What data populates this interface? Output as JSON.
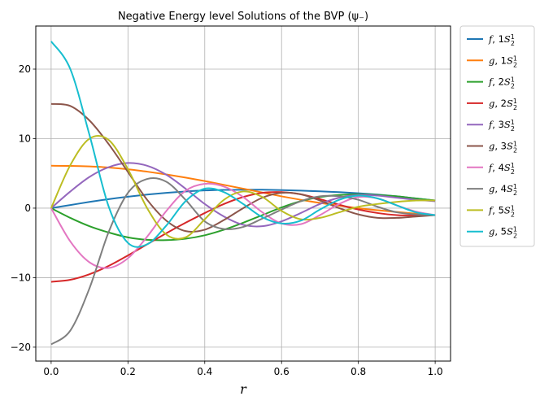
{
  "chart_data": {
    "type": "line",
    "title": "Negative Energy level Solutions of the BVP (ψ₋)",
    "xlabel": "r",
    "ylabel": "",
    "xlim": [
      -0.04,
      1.04
    ],
    "ylim": [
      -22,
      26.2
    ],
    "x_ticks": [
      "0.0",
      "0.2",
      "0.4",
      "0.6",
      "0.8",
      "1.0"
    ],
    "y_ticks": [
      "−20",
      "−10",
      "0",
      "10",
      "20"
    ],
    "x_tick_values": [
      0,
      0.2,
      0.4,
      0.6,
      0.8,
      1.0
    ],
    "y_tick_values": [
      -20,
      -10,
      0,
      10,
      20
    ],
    "grid": true,
    "legend_position": "outside-right",
    "x": [
      0.0,
      0.05,
      0.1,
      0.15,
      0.2,
      0.25,
      0.3,
      0.35,
      0.4,
      0.45,
      0.5,
      0.55,
      0.6,
      0.65,
      0.7,
      0.75,
      0.8,
      0.85,
      0.9,
      0.95,
      1.0
    ],
    "series": [
      {
        "name": "f, 1S½",
        "func": "f",
        "state": "1S",
        "color": "#1f77b4",
        "values": [
          0.0,
          0.45,
          0.9,
          1.3,
          1.65,
          1.95,
          2.2,
          2.4,
          2.55,
          2.63,
          2.65,
          2.65,
          2.6,
          2.52,
          2.42,
          2.3,
          2.15,
          1.95,
          1.7,
          1.4,
          1.1
        ]
      },
      {
        "name": "g, 1S½",
        "func": "g",
        "state": "1S",
        "color": "#ff7f0e",
        "values": [
          6.1,
          6.08,
          6.0,
          5.85,
          5.6,
          5.25,
          4.85,
          4.4,
          3.9,
          3.35,
          2.8,
          2.25,
          1.7,
          1.2,
          0.75,
          0.35,
          0.0,
          -0.3,
          -0.55,
          -0.8,
          -1.0
        ]
      },
      {
        "name": "f, 2S½",
        "func": "f",
        "state": "2S",
        "color": "#2ca02c",
        "values": [
          0.0,
          -1.4,
          -2.6,
          -3.5,
          -4.2,
          -4.55,
          -4.6,
          -4.4,
          -3.9,
          -3.1,
          -2.1,
          -1.0,
          0.1,
          1.0,
          1.6,
          1.9,
          2.0,
          1.9,
          1.7,
          1.4,
          1.1
        ]
      },
      {
        "name": "g, 2S½",
        "func": "g",
        "state": "2S",
        "color": "#d62728",
        "values": [
          -10.6,
          -10.3,
          -9.5,
          -8.3,
          -6.8,
          -5.2,
          -3.6,
          -2.1,
          -0.7,
          0.6,
          1.6,
          2.2,
          2.3,
          2.0,
          1.3,
          0.5,
          -0.2,
          -0.7,
          -1.0,
          -1.05,
          -1.0
        ]
      },
      {
        "name": "f, 3S½",
        "func": "f",
        "state": "3S",
        "color": "#9467bd",
        "values": [
          0.0,
          2.4,
          4.5,
          5.9,
          6.5,
          6.1,
          4.8,
          2.8,
          0.6,
          -1.2,
          -2.4,
          -2.6,
          -1.9,
          -0.7,
          0.6,
          1.5,
          1.9,
          1.8,
          1.5,
          1.2,
          1.0
        ]
      },
      {
        "name": "g, 3S½",
        "func": "g",
        "state": "3S",
        "color": "#8c564b",
        "values": [
          15.0,
          14.7,
          12.6,
          9.2,
          5.2,
          1.2,
          -1.8,
          -3.3,
          -3.1,
          -1.7,
          0.0,
          1.5,
          2.2,
          2.0,
          1.1,
          0.0,
          -0.9,
          -1.4,
          -1.4,
          -1.2,
          -1.0
        ]
      },
      {
        "name": "f, 4S½",
        "func": "f",
        "state": "4S",
        "color": "#e377c2",
        "values": [
          0.0,
          -4.8,
          -7.8,
          -8.6,
          -7.2,
          -4.1,
          -0.4,
          2.5,
          3.5,
          3.1,
          1.6,
          -0.6,
          -2.2,
          -2.3,
          -1.0,
          0.6,
          1.6,
          1.4,
          0.4,
          -0.5,
          -1.0
        ]
      },
      {
        "name": "g, 4S½",
        "func": "g",
        "state": "4S",
        "color": "#7f7f7f",
        "values": [
          -19.6,
          -17.6,
          -11.5,
          -3.4,
          2.2,
          4.2,
          3.8,
          1.2,
          -1.9,
          -3.0,
          -2.7,
          -1.5,
          -0.2,
          1.0,
          1.7,
          1.7,
          1.2,
          0.2,
          -0.6,
          -0.9,
          -1.0
        ]
      },
      {
        "name": "f, 5S½",
        "func": "f",
        "state": "5S",
        "color": "#bcbd22",
        "values": [
          0.0,
          6.2,
          10.0,
          9.8,
          5.6,
          0.0,
          -3.8,
          -4.2,
          -1.6,
          1.2,
          2.4,
          1.6,
          -0.4,
          -1.6,
          -1.4,
          -0.6,
          0.2,
          0.6,
          0.9,
          1.1,
          1.1
        ]
      },
      {
        "name": "g, 5S½",
        "func": "g",
        "state": "5S",
        "color": "#17becf",
        "values": [
          24.0,
          20.0,
          10.5,
          0.2,
          -5.0,
          -5.2,
          -2.5,
          1.0,
          2.8,
          2.3,
          0.6,
          -1.3,
          -2.2,
          -1.8,
          -0.2,
          1.2,
          1.8,
          1.4,
          0.4,
          -0.6,
          -1.0
        ]
      }
    ]
  }
}
